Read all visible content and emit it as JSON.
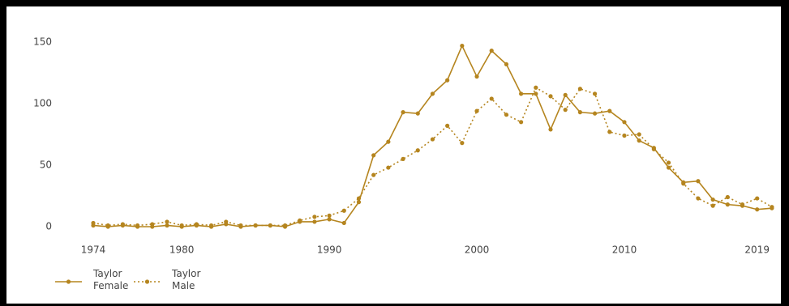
{
  "chart_data": {
    "type": "line",
    "x": [
      1974,
      1975,
      1976,
      1977,
      1978,
      1979,
      1980,
      1981,
      1982,
      1983,
      1984,
      1985,
      1986,
      1987,
      1988,
      1989,
      1990,
      1991,
      1992,
      1993,
      1994,
      1995,
      1996,
      1997,
      1998,
      1999,
      2000,
      2001,
      2002,
      2003,
      2004,
      2005,
      2006,
      2007,
      2008,
      2009,
      2010,
      2011,
      2012,
      2013,
      2014,
      2015,
      2016,
      2017,
      2018,
      2019,
      2020
    ],
    "series": [
      {
        "name": "Taylor Female",
        "color": "#b5851f",
        "dash": "solid",
        "values": [
          1,
          0,
          1,
          0,
          0,
          1,
          0,
          1,
          0,
          2,
          0,
          1,
          1,
          0,
          4,
          4,
          6,
          3,
          20,
          58,
          69,
          93,
          92,
          108,
          119,
          147,
          122,
          143,
          132,
          108,
          108,
          79,
          107,
          93,
          92,
          94,
          85,
          70,
          64,
          48,
          36,
          37,
          22,
          18,
          17,
          14,
          15
        ]
      },
      {
        "name": "Taylor Male",
        "color": "#b5851f",
        "dash": "dotted",
        "values": [
          3,
          1,
          2,
          1,
          2,
          4,
          1,
          2,
          1,
          4,
          1,
          1,
          1,
          1,
          5,
          8,
          9,
          13,
          23,
          42,
          48,
          55,
          62,
          71,
          82,
          68,
          94,
          104,
          91,
          85,
          113,
          106,
          95,
          112,
          108,
          77,
          74,
          75,
          63,
          52,
          35,
          23,
          17,
          24,
          18,
          23,
          16
        ]
      }
    ],
    "xlim": [
      1973,
      2020.5
    ],
    "xticks": [
      1974,
      1980,
      1990,
      2000,
      2010,
      2019
    ],
    "ylim": [
      -5,
      160
    ],
    "yticks": [
      0,
      50,
      100,
      150
    ],
    "legend": "bottom-left"
  }
}
